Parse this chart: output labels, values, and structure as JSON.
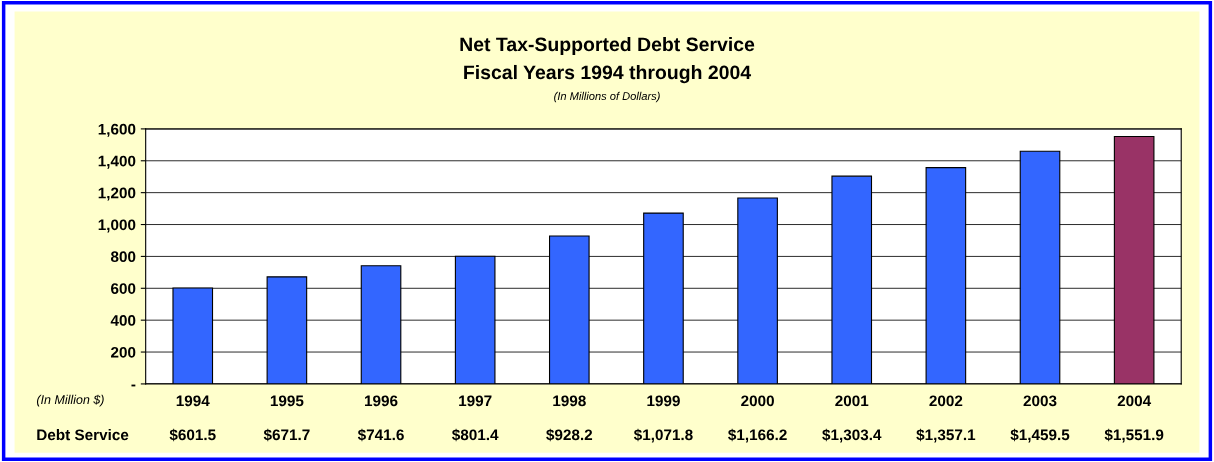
{
  "chart_data": {
    "type": "bar",
    "title": "Net Tax-Supported Debt Service\nFiscal Years 1994 through 2004",
    "subtitle": "(In Millions of Dollars)",
    "categories": [
      "1994",
      "1995",
      "1996",
      "1997",
      "1998",
      "1999",
      "2000",
      "2001",
      "2002",
      "2003",
      "2004"
    ],
    "values": [
      601.5,
      671.7,
      741.6,
      801.4,
      928.2,
      1071.8,
      1166.2,
      1303.4,
      1357.1,
      1459.5,
      1551.9
    ],
    "value_labels": [
      "$601.5",
      "$671.7",
      "$741.6",
      "$801.4",
      "$928.2",
      "$1,071.8",
      "$1,166.2",
      "$1,303.4",
      "$1,357.1",
      "$1,459.5",
      "$1,551.9"
    ],
    "colors": [
      "#3366ff",
      "#3366ff",
      "#3366ff",
      "#3366ff",
      "#3366ff",
      "#3366ff",
      "#3366ff",
      "#3366ff",
      "#3366ff",
      "#3366ff",
      "#993366"
    ],
    "annotations": [
      "(In Million $)",
      "Debt Service"
    ],
    "ylim": [
      0,
      1600
    ],
    "yticks": [
      {
        "value": 0,
        "label": "-"
      },
      {
        "value": 200,
        "label": "200"
      },
      {
        "value": 400,
        "label": "400"
      },
      {
        "value": 600,
        "label": "600"
      },
      {
        "value": 800,
        "label": "800"
      },
      {
        "value": 1000,
        "label": "1,000"
      },
      {
        "value": 1200,
        "label": "1,200"
      },
      {
        "value": 1400,
        "label": "1,400"
      },
      {
        "value": 1600,
        "label": "1,600"
      }
    ],
    "grid": "y",
    "legend": false
  }
}
